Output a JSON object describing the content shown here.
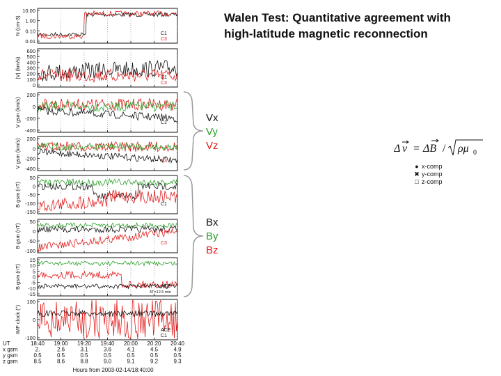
{
  "title_line1": "Walen Test: Quantitative agreement with",
  "title_line2": "high-latitude magnetic reconnection",
  "groups": {
    "velocity": [
      "Vx",
      "Vy",
      "Vz"
    ],
    "field": [
      "Bx",
      "By",
      "Bz"
    ]
  },
  "component_colors": {
    "x": "#111111",
    "y": "#2aa02a",
    "z": "#e11b1b"
  },
  "walen_legend": [
    "x-comp",
    "y-comp",
    "z-comp"
  ],
  "formula": "Δv = ΔB / √(ρμ0)",
  "chart_data": {
    "type": "line",
    "x_axis": {
      "label": "Hours from 2003-02-14/18:40:00",
      "ticks": [
        "18:40",
        "19:00",
        "19:20",
        "19:40",
        "20:00",
        "20:20",
        "20:40"
      ],
      "ephemeris_rows": [
        {
          "name": "UT",
          "values": [
            "18:40",
            "19:00",
            "19:20",
            "19:40",
            "20:00",
            "20:20",
            "20:40"
          ]
        },
        {
          "name": "x gsm",
          "values": [
            "2.",
            "2.6",
            "3.1",
            "3.6",
            "4.1",
            "4.5",
            "4.9"
          ]
        },
        {
          "name": "y gsm",
          "values": [
            "0.5",
            "0.5",
            "0.5",
            "0.5",
            "0.5",
            "0.5",
            "0.5"
          ]
        },
        {
          "name": "z gsm",
          "values": [
            "8.5",
            "8.6",
            "8.8",
            "9.0",
            "9.1",
            "9.2",
            "9.3"
          ]
        }
      ]
    },
    "panels": [
      {
        "ylabel": "N (cm-3)",
        "ticks": [
          "10.00",
          "1.00",
          "0.10",
          "0.01"
        ],
        "legend": [
          "C1",
          "C3"
        ]
      },
      {
        "ylabel": "|V| (km/s)",
        "ticks": [
          "600",
          "500",
          "400",
          "300",
          "200",
          "100",
          "0"
        ],
        "legend": [
          "C1",
          "C3"
        ]
      },
      {
        "ylabel": "V gsm (km/s)",
        "ticks": [
          "200",
          "0",
          "-200",
          "-400"
        ],
        "legend": [
          "C1"
        ]
      },
      {
        "ylabel": "V gsm (km/s)",
        "ticks": [
          "200",
          "0",
          "-200",
          "-400"
        ],
        "legend": [
          "C3"
        ]
      },
      {
        "ylabel": "B gsm (nT)",
        "ticks": [
          "50",
          "0",
          "-50",
          "-100",
          "-150"
        ],
        "legend": [
          "C1"
        ]
      },
      {
        "ylabel": "B gsm (nT)",
        "ticks": [
          "50",
          "0",
          "-50",
          "-100"
        ],
        "legend": [
          "C3"
        ]
      },
      {
        "ylabel": "B gsm (nT)",
        "ticks": [
          "15",
          "10",
          "5",
          "0",
          "-5",
          "-10",
          "-15"
        ],
        "legend": [
          "ACE"
        ],
        "note": "δT=12.5 min"
      },
      {
        "ylabel": "IMF clock (°)",
        "ticks": [
          "100",
          "0",
          "-100"
        ],
        "legend": [
          "ACE",
          "C1"
        ]
      }
    ]
  }
}
